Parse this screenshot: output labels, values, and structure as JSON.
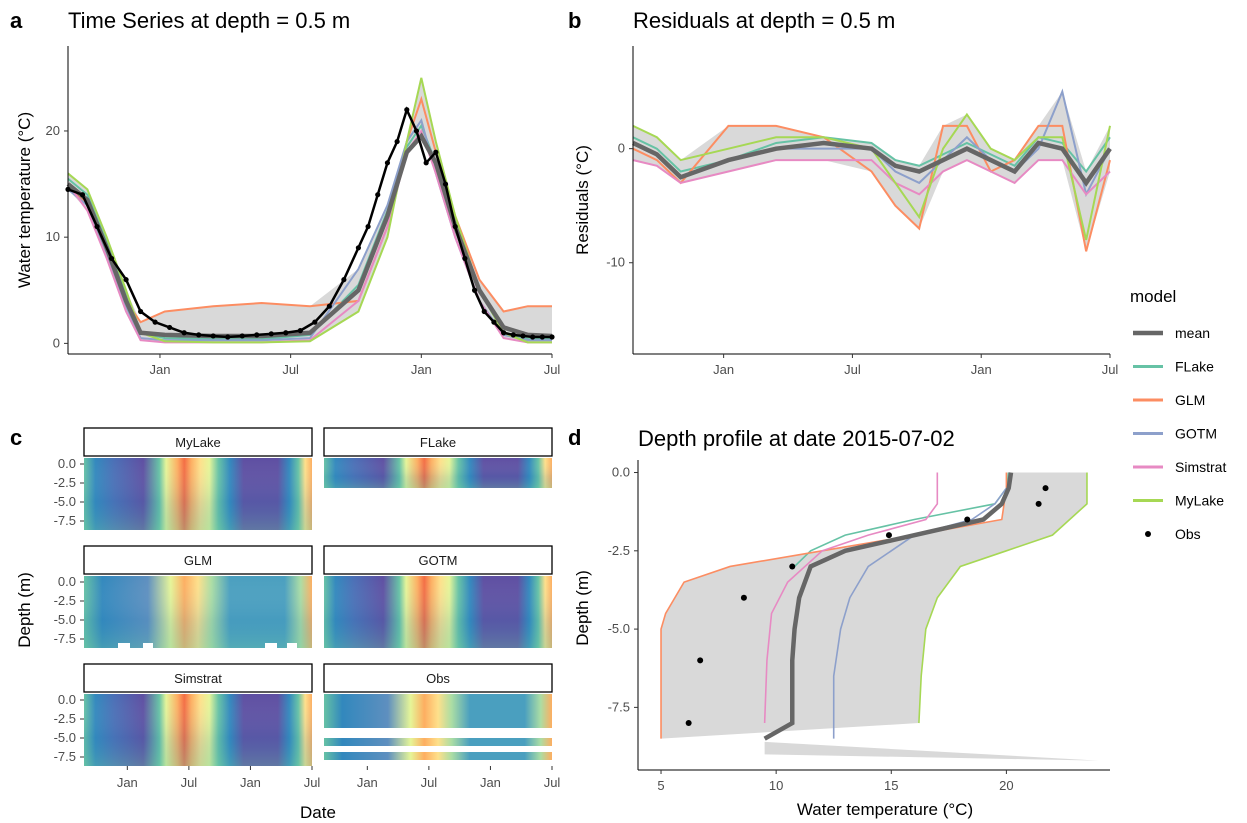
{
  "colors": {
    "mean": "#666666",
    "FLake": "#66c2a5",
    "GLM": "#fc8d62",
    "GOTM": "#8da0cb",
    "Simstrat": "#e78ac3",
    "MyLake": "#a6d854",
    "Obs": "#000000",
    "ribbon": "#d9d9d9"
  },
  "panel_labels": [
    "a",
    "b",
    "c",
    "d"
  ],
  "legend": {
    "title": "model",
    "items": [
      "mean",
      "FLake",
      "GLM",
      "GOTM",
      "Simstrat",
      "MyLake",
      "Obs"
    ]
  },
  "chart_data": [
    {
      "id": "a",
      "type": "line",
      "title": "Time Series at depth = 0.5 m",
      "xlabel": "",
      "ylabel": "Water temperature (°C)",
      "x_ticks": [
        "Jan",
        "Jul",
        "Jan",
        "Jul"
      ],
      "y_ticks": [
        0,
        10,
        20
      ],
      "ylim": [
        -1,
        28
      ],
      "series": [
        {
          "name": "mean",
          "x": [
            0,
            4,
            8,
            12,
            15,
            20,
            30,
            40,
            50,
            60,
            66,
            70,
            73,
            76,
            80,
            85,
            90,
            95,
            100
          ],
          "y": [
            15,
            13.5,
            9,
            4,
            1,
            0.8,
            0.7,
            0.7,
            1,
            5,
            12,
            18,
            19.5,
            17,
            11,
            5,
            1.5,
            0.8,
            0.7
          ]
        },
        {
          "name": "FLake",
          "x": [
            0,
            4,
            8,
            12,
            15,
            20,
            30,
            40,
            50,
            60,
            66,
            70,
            73,
            76,
            80,
            85,
            90,
            95,
            100
          ],
          "y": [
            15.5,
            14,
            9.5,
            4.5,
            1,
            0.5,
            0.4,
            0.4,
            0.8,
            5.5,
            12.5,
            18.5,
            20.5,
            17,
            11.5,
            5,
            1,
            0.4,
            0.4
          ]
        },
        {
          "name": "GLM",
          "x": [
            0,
            4,
            8,
            12,
            15,
            20,
            30,
            40,
            50,
            60,
            66,
            70,
            73,
            76,
            80,
            85,
            90,
            95,
            100
          ],
          "y": [
            15,
            13,
            8.5,
            4,
            2,
            3,
            3.5,
            3.8,
            3.5,
            4,
            11,
            19,
            23,
            18,
            12,
            6,
            3,
            3.5,
            3.5
          ]
        },
        {
          "name": "GOTM",
          "x": [
            0,
            4,
            8,
            12,
            15,
            20,
            30,
            40,
            50,
            60,
            66,
            70,
            73,
            76,
            80,
            85,
            90,
            95,
            100
          ],
          "y": [
            14.5,
            13,
            8.5,
            3.5,
            0.5,
            0.3,
            0.3,
            0.3,
            0.5,
            7,
            13,
            19,
            21,
            16,
            10,
            4,
            0.8,
            0.3,
            0.3
          ]
        },
        {
          "name": "Simstrat",
          "x": [
            0,
            4,
            8,
            12,
            15,
            20,
            30,
            40,
            50,
            60,
            66,
            70,
            73,
            76,
            80,
            85,
            90,
            95,
            100
          ],
          "y": [
            15,
            12.5,
            8,
            3,
            0.3,
            0.1,
            0.1,
            0.1,
            0.3,
            4,
            11,
            18,
            20,
            16,
            10,
            4,
            0.5,
            0.1,
            0.1
          ]
        },
        {
          "name": "MyLake",
          "x": [
            0,
            4,
            8,
            12,
            15,
            20,
            30,
            40,
            50,
            60,
            66,
            70,
            73,
            76,
            80,
            85,
            90,
            95,
            100
          ],
          "y": [
            16,
            14.5,
            10,
            5,
            1,
            0.2,
            0.1,
            0.1,
            0.2,
            3,
            10,
            19,
            25,
            19,
            12,
            5,
            1,
            0.1,
            0.1
          ]
        },
        {
          "name": "Obs",
          "x": [
            0,
            3,
            6,
            9,
            12,
            15,
            18,
            21,
            24,
            27,
            30,
            33,
            36,
            39,
            42,
            45,
            48,
            51,
            54,
            57,
            60,
            62,
            64,
            66,
            68,
            70,
            72,
            74,
            76,
            78,
            80,
            82,
            84,
            86,
            88,
            90,
            92,
            94,
            96,
            98,
            100
          ],
          "y": [
            14.5,
            14,
            11,
            8,
            6,
            3,
            2,
            1.5,
            1,
            0.8,
            0.7,
            0.6,
            0.7,
            0.8,
            0.9,
            1,
            1.2,
            2,
            3.5,
            6,
            9,
            11,
            14,
            17,
            19,
            22,
            20,
            17,
            18,
            15,
            11,
            8,
            5,
            3,
            2,
            1,
            0.8,
            0.7,
            0.6,
            0.6,
            0.6
          ]
        }
      ]
    },
    {
      "id": "b",
      "type": "line",
      "title": "Residuals at depth = 0.5 m",
      "xlabel": "",
      "ylabel": "Residuals (°C)",
      "x_ticks": [
        "Jan",
        "Jul",
        "Jan",
        "Jul"
      ],
      "y_ticks": [
        0,
        -10
      ],
      "ylim": [
        -18,
        9
      ],
      "series": [
        {
          "name": "mean",
          "x": [
            0,
            5,
            10,
            20,
            30,
            40,
            50,
            55,
            60,
            65,
            70,
            75,
            80,
            85,
            90,
            95,
            100
          ],
          "y": [
            0.5,
            -0.5,
            -2.5,
            -1,
            0,
            0.5,
            0,
            -1.5,
            -2,
            -1,
            0,
            -1,
            -2,
            0.5,
            0,
            -3,
            0
          ]
        },
        {
          "name": "FLake",
          "x": [
            0,
            5,
            10,
            20,
            30,
            40,
            50,
            55,
            60,
            65,
            70,
            75,
            80,
            85,
            90,
            95,
            100
          ],
          "y": [
            1,
            0,
            -2,
            -1,
            0.5,
            1,
            0.5,
            -1,
            -1.5,
            -0.5,
            0.5,
            -0.5,
            -1.5,
            1,
            0.5,
            -2,
            1
          ]
        },
        {
          "name": "GLM",
          "x": [
            0,
            5,
            10,
            20,
            30,
            40,
            50,
            55,
            60,
            65,
            70,
            75,
            80,
            85,
            90,
            95,
            100
          ],
          "y": [
            0,
            -1,
            -3,
            2,
            2,
            1,
            -2,
            -5,
            -7,
            2,
            2,
            -2,
            -1,
            2,
            2,
            -9,
            -1
          ]
        },
        {
          "name": "GOTM",
          "x": [
            0,
            5,
            10,
            20,
            30,
            40,
            50,
            55,
            60,
            65,
            70,
            75,
            80,
            85,
            90,
            95,
            100
          ],
          "y": [
            0.5,
            -0.5,
            -2.5,
            -1,
            0,
            0,
            0,
            -2,
            -3,
            -1,
            1,
            -1,
            -2,
            0,
            5,
            -4,
            0
          ]
        },
        {
          "name": "Simstrat",
          "x": [
            0,
            5,
            10,
            20,
            30,
            40,
            50,
            55,
            60,
            65,
            70,
            75,
            80,
            85,
            90,
            95,
            100
          ],
          "y": [
            -1,
            -1.5,
            -3,
            -2,
            -1,
            -1,
            -1,
            -3,
            -4,
            -2,
            -1,
            -2,
            -3,
            -1,
            -1,
            -4,
            -2
          ]
        },
        {
          "name": "MyLake",
          "x": [
            0,
            5,
            10,
            20,
            30,
            40,
            50,
            55,
            60,
            65,
            70,
            75,
            80,
            85,
            90,
            95,
            100
          ],
          "y": [
            2,
            1,
            -1,
            0,
            1,
            1,
            0,
            -3,
            -6,
            0,
            3,
            0,
            -1,
            1,
            1,
            -8,
            2
          ]
        }
      ]
    },
    {
      "id": "c",
      "type": "heatmap",
      "xlabel": "Date",
      "ylabel": "Depth (m)",
      "x_ticks": [
        "Jan",
        "Jul",
        "Jan",
        "Jul"
      ],
      "y_ticks": [
        "0.0",
        "-2.5",
        "-5.0",
        "-7.5"
      ],
      "facets": [
        "MyLake",
        "FLake",
        "GLM",
        "GOTM",
        "Simstrat",
        "Obs"
      ]
    },
    {
      "id": "d",
      "type": "line",
      "title": "Depth profile at date 2015-07-02",
      "xlabel": "Water temperature (°C)",
      "ylabel": "Depth (m)",
      "x_ticks": [
        5,
        10,
        15,
        20
      ],
      "y_ticks": [
        "0.0",
        "-2.5",
        "-5.0",
        "-7.5"
      ],
      "xlim": [
        4,
        24.5
      ],
      "ylim": [
        -9.5,
        0.4
      ],
      "series": [
        {
          "name": "mean",
          "x": [
            20.2,
            20.1,
            19.8,
            19,
            16,
            13,
            11.5,
            11,
            10.8,
            10.7,
            10.7,
            9.5
          ],
          "y": [
            0,
            -0.5,
            -1,
            -1.5,
            -2,
            -2.5,
            -3,
            -4,
            -5,
            -6,
            -8,
            -8.5
          ]
        },
        {
          "name": "FLake",
          "x": [
            20.1,
            20,
            19.5,
            16,
            13,
            11.5,
            10.8
          ],
          "y": [
            0,
            -0.5,
            -1,
            -1.5,
            -2,
            -2.5,
            -3
          ]
        },
        {
          "name": "GLM",
          "x": [
            20.0,
            20.0,
            19.8,
            16,
            12,
            8,
            6,
            5.2,
            5.0,
            5.0
          ],
          "y": [
            0,
            -0.5,
            -1.5,
            -2,
            -2.5,
            -3,
            -3.5,
            -4.5,
            -5,
            -8.5
          ]
        },
        {
          "name": "GOTM",
          "x": [
            20,
            19.5,
            18.5,
            16,
            14,
            13.2,
            12.8,
            12.5,
            12.5
          ],
          "y": [
            -0.5,
            -1,
            -1.5,
            -2,
            -3,
            -4,
            -5,
            -6.5,
            -8.5
          ]
        },
        {
          "name": "Simstrat",
          "x": [
            17,
            17,
            16.5,
            14,
            12,
            10.5,
            9.8,
            9.6,
            9.5
          ],
          "y": [
            0,
            -1,
            -1.5,
            -2,
            -2.5,
            -3.5,
            -4.5,
            -6,
            -8
          ]
        },
        {
          "name": "MyLake",
          "x": [
            23.5,
            23.5,
            22,
            20,
            18,
            17,
            16.5,
            16.3,
            16.2
          ],
          "y": [
            0,
            -1,
            -2,
            -2.5,
            -3,
            -4,
            -5,
            -6.5,
            -8
          ]
        },
        {
          "name": "Obs",
          "x": [
            21.7,
            21.4,
            18.3,
            14.9,
            10.7,
            8.6,
            6.7,
            6.2
          ],
          "y": [
            -0.5,
            -1,
            -1.5,
            -2,
            -3,
            -4,
            -6,
            -8
          ]
        }
      ]
    }
  ]
}
